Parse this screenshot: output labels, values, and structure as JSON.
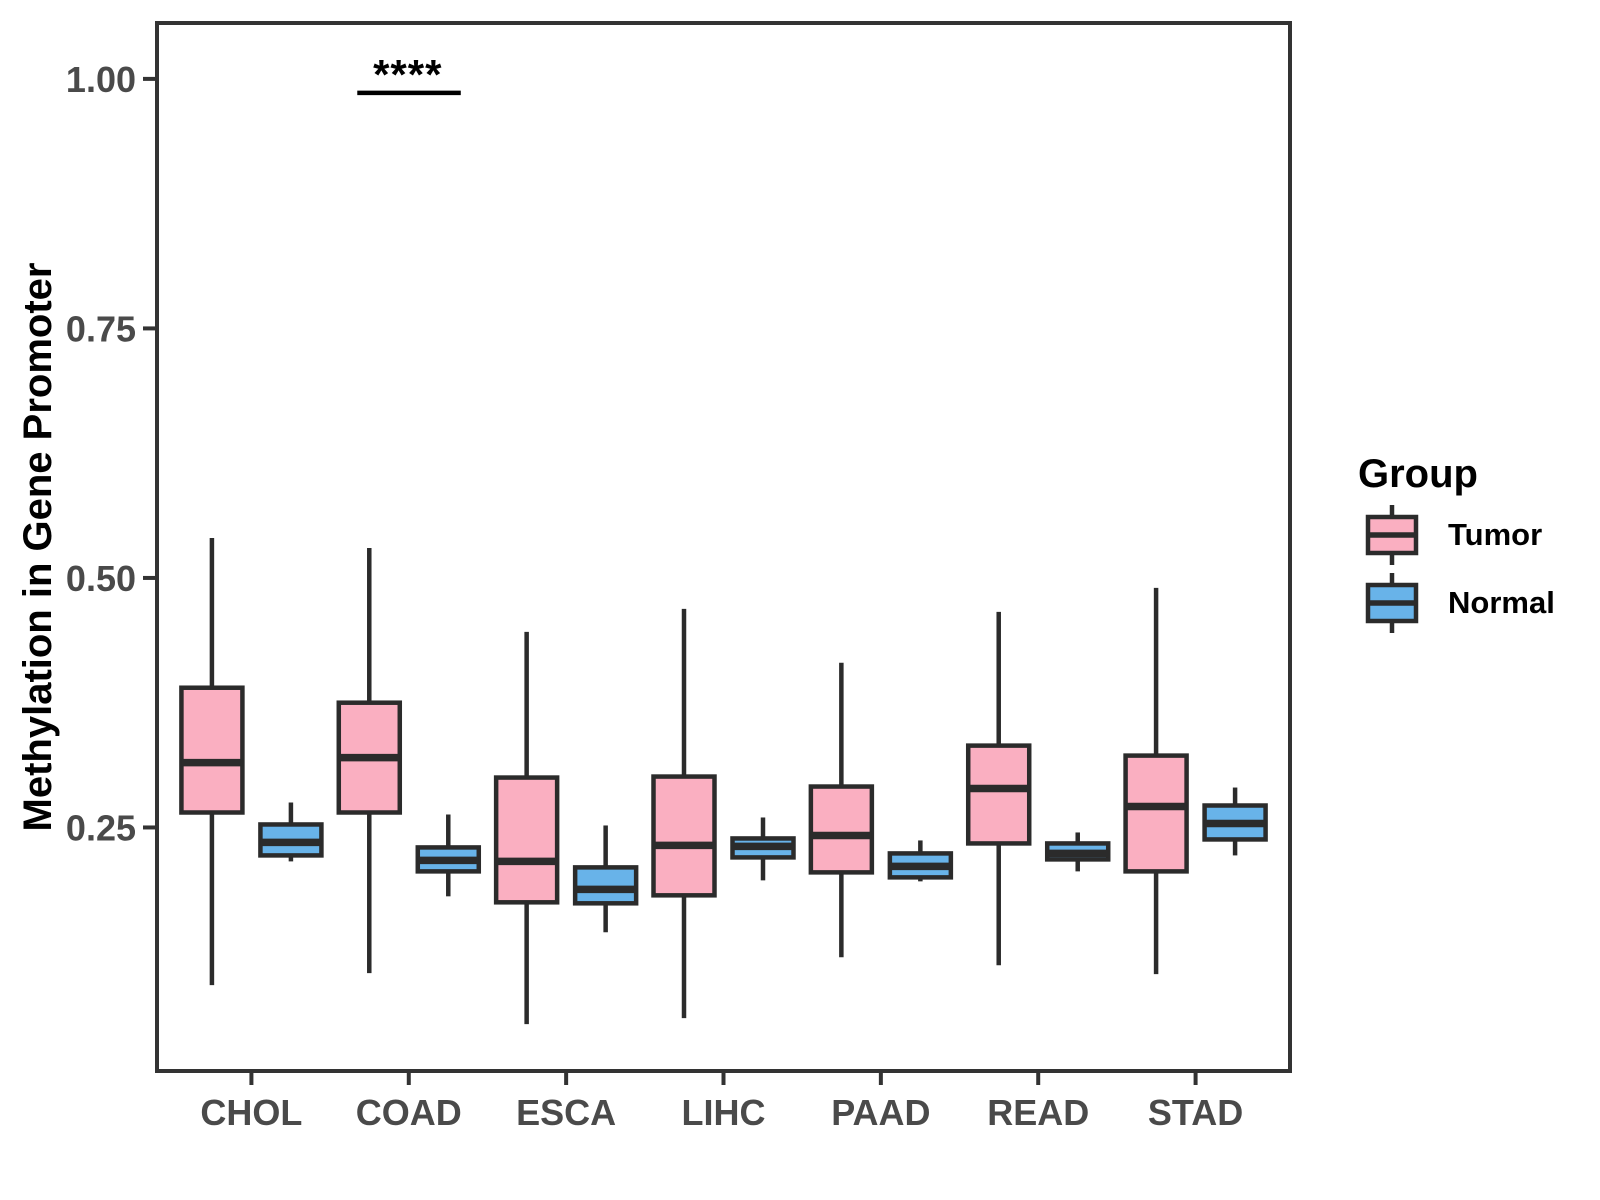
{
  "figure": {
    "background": "#FFFFFF"
  },
  "chart_data": {
    "type": "boxplot",
    "title": "",
    "xlabel": "",
    "ylabel": "Methylation in Gene Promoter",
    "grid": false,
    "legend_position": "right",
    "categories": [
      "CHOL",
      "COAD",
      "ESCA",
      "LIHC",
      "PAAD",
      "READ",
      "STAD"
    ],
    "yticks": [
      {
        "value": 0.25,
        "label": "0.25"
      },
      {
        "value": 0.5,
        "label": "0.50"
      },
      {
        "value": 0.75,
        "label": "0.75"
      },
      {
        "value": 1.0,
        "label": "1.00"
      }
    ],
    "ylim": [
      0.006,
      1.056
    ],
    "legend": {
      "title": "Group",
      "entries": [
        {
          "label": "Tumor",
          "color": "#FAAFC1"
        },
        {
          "label": "Normal",
          "color": "#68B3E9"
        }
      ]
    },
    "series": [
      {
        "name": "Tumor",
        "color": "#FAAFC1",
        "boxes": [
          {
            "category": "CHOL",
            "low": 0.092,
            "q1": 0.265,
            "median": 0.315,
            "q3": 0.39,
            "high": 0.54
          },
          {
            "category": "COAD",
            "low": 0.104,
            "q1": 0.265,
            "median": 0.32,
            "q3": 0.375,
            "high": 0.53
          },
          {
            "category": "ESCA",
            "low": 0.053,
            "q1": 0.175,
            "median": 0.216,
            "q3": 0.3,
            "high": 0.446
          },
          {
            "category": "LIHC",
            "low": 0.059,
            "q1": 0.182,
            "median": 0.232,
            "q3": 0.301,
            "high": 0.469
          },
          {
            "category": "PAAD",
            "low": 0.12,
            "q1": 0.205,
            "median": 0.242,
            "q3": 0.291,
            "high": 0.415
          },
          {
            "category": "READ",
            "low": 0.112,
            "q1": 0.234,
            "median": 0.289,
            "q3": 0.332,
            "high": 0.466
          },
          {
            "category": "STAD",
            "low": 0.103,
            "q1": 0.206,
            "median": 0.271,
            "q3": 0.322,
            "high": 0.49
          }
        ]
      },
      {
        "name": "Normal",
        "color": "#68B3E9",
        "boxes": [
          {
            "category": "CHOL",
            "low": 0.216,
            "q1": 0.222,
            "median": 0.235,
            "q3": 0.253,
            "high": 0.275
          },
          {
            "category": "COAD",
            "low": 0.181,
            "q1": 0.206,
            "median": 0.217,
            "q3": 0.23,
            "high": 0.263
          },
          {
            "category": "ESCA",
            "low": 0.145,
            "q1": 0.174,
            "median": 0.188,
            "q3": 0.21,
            "high": 0.252
          },
          {
            "category": "LIHC",
            "low": 0.197,
            "q1": 0.22,
            "median": 0.231,
            "q3": 0.239,
            "high": 0.26
          },
          {
            "category": "PAAD",
            "low": 0.196,
            "q1": 0.2,
            "median": 0.211,
            "q3": 0.224,
            "high": 0.237
          },
          {
            "category": "READ",
            "low": 0.206,
            "q1": 0.218,
            "median": 0.224,
            "q3": 0.234,
            "high": 0.245
          },
          {
            "category": "STAD",
            "low": 0.222,
            "q1": 0.238,
            "median": 0.254,
            "q3": 0.272,
            "high": 0.29
          }
        ]
      }
    ],
    "annotation": {
      "label": "****",
      "category": "COAD",
      "bar_y": 0.986
    },
    "colors": {
      "box_stroke": "#2B2B2B",
      "axis": "#333333",
      "tick_text": "#4A4A4A",
      "annotation": "#000000"
    }
  }
}
